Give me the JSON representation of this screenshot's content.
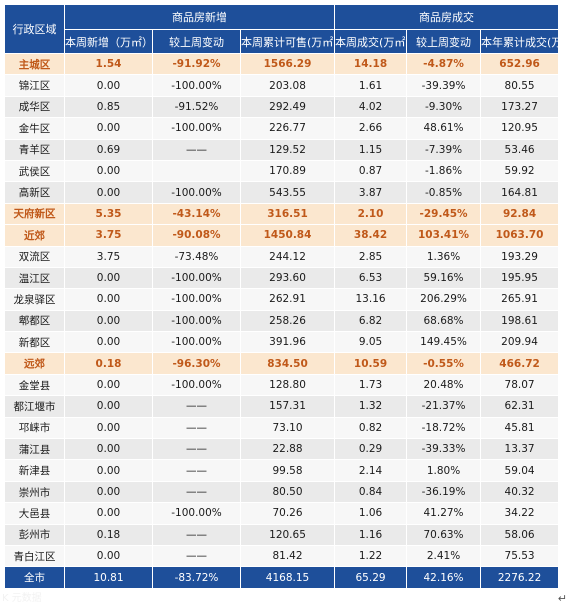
{
  "header": {
    "region_col": "行政区域",
    "group_new": "商品房新增",
    "group_deal": "商品房成交",
    "cols": [
      "本周新增（万㎡）",
      "较上周变动",
      "本周累计可售(万㎡)",
      "本周成交(万㎡)",
      "较上周变动",
      "本年累计成交(万㎡)"
    ]
  },
  "rows": [
    {
      "name": "主城区",
      "group": true,
      "v": [
        "1.54",
        "-91.92%",
        "1566.29",
        "14.18",
        "-4.87%",
        "652.96"
      ]
    },
    {
      "name": "锦江区",
      "v": [
        "0.00",
        "-100.00%",
        "203.08",
        "1.61",
        "-39.39%",
        "80.55"
      ]
    },
    {
      "name": "成华区",
      "v": [
        "0.85",
        "-91.52%",
        "292.49",
        "4.02",
        "-9.30%",
        "173.27"
      ]
    },
    {
      "name": "金牛区",
      "v": [
        "0.00",
        "-100.00%",
        "226.77",
        "2.66",
        "48.61%",
        "120.95"
      ]
    },
    {
      "name": "青羊区",
      "v": [
        "0.69",
        "——",
        "129.52",
        "1.15",
        "-7.39%",
        "53.46"
      ]
    },
    {
      "name": "武侯区",
      "v": [
        "0.00",
        "",
        "170.89",
        "0.87",
        "-1.86%",
        "59.92"
      ]
    },
    {
      "name": "高新区",
      "v": [
        "0.00",
        "-100.00%",
        "543.55",
        "3.87",
        "-0.85%",
        "164.81"
      ]
    },
    {
      "name": "天府新区",
      "group": true,
      "v": [
        "5.35",
        "-43.14%",
        "316.51",
        "2.10",
        "-29.45%",
        "92.84"
      ]
    },
    {
      "name": "近郊",
      "group": true,
      "v": [
        "3.75",
        "-90.08%",
        "1450.84",
        "38.42",
        "103.41%",
        "1063.70"
      ]
    },
    {
      "name": "双流区",
      "v": [
        "3.75",
        "-73.48%",
        "244.12",
        "2.85",
        "1.36%",
        "193.29"
      ]
    },
    {
      "name": "温江区",
      "v": [
        "0.00",
        "-100.00%",
        "293.60",
        "6.53",
        "59.16%",
        "195.95"
      ]
    },
    {
      "name": "龙泉驿区",
      "v": [
        "0.00",
        "-100.00%",
        "262.91",
        "13.16",
        "206.29%",
        "265.91"
      ]
    },
    {
      "name": "郫都区",
      "v": [
        "0.00",
        "-100.00%",
        "258.26",
        "6.82",
        "68.68%",
        "198.61"
      ]
    },
    {
      "name": "新都区",
      "v": [
        "0.00",
        "-100.00%",
        "391.96",
        "9.05",
        "149.45%",
        "209.94"
      ]
    },
    {
      "name": "远郊",
      "group": true,
      "v": [
        "0.18",
        "-96.30%",
        "834.50",
        "10.59",
        "-0.55%",
        "466.72"
      ]
    },
    {
      "name": "金堂县",
      "v": [
        "0.00",
        "-100.00%",
        "128.80",
        "1.73",
        "20.48%",
        "78.07"
      ]
    },
    {
      "name": "都江堰市",
      "v": [
        "0.00",
        "——",
        "157.31",
        "1.32",
        "-21.37%",
        "62.31"
      ]
    },
    {
      "name": "邛崃市",
      "v": [
        "0.00",
        "——",
        "73.10",
        "0.82",
        "-18.72%",
        "45.81"
      ]
    },
    {
      "name": "蒲江县",
      "v": [
        "0.00",
        "——",
        "22.88",
        "0.29",
        "-39.33%",
        "13.37"
      ]
    },
    {
      "name": "新津县",
      "v": [
        "0.00",
        "——",
        "99.58",
        "2.14",
        "1.80%",
        "59.04"
      ]
    },
    {
      "name": "崇州市",
      "v": [
        "0.00",
        "——",
        "80.50",
        "0.84",
        "-36.19%",
        "40.32"
      ]
    },
    {
      "name": "大邑县",
      "v": [
        "0.00",
        "-100.00%",
        "70.26",
        "1.06",
        "41.27%",
        "34.22"
      ]
    },
    {
      "name": "彭州市",
      "v": [
        "0.18",
        "——",
        "120.65",
        "1.16",
        "70.63%",
        "58.06"
      ]
    },
    {
      "name": "青白江区",
      "v": [
        "0.00",
        "——",
        "81.42",
        "1.22",
        "2.41%",
        "75.53"
      ]
    },
    {
      "name": "全市",
      "total": true,
      "v": [
        "10.81",
        "-83.72%",
        "4168.15",
        "65.29",
        "42.16%",
        "2276.22"
      ]
    }
  ],
  "watermark": "K 元数据",
  "edge_glyph": "↵"
}
